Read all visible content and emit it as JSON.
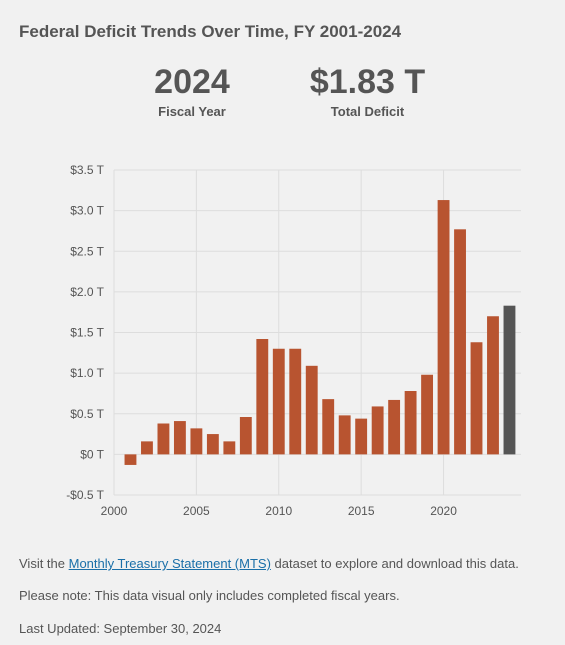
{
  "header": {
    "title": "Federal Deficit Trends Over Time, FY 2001-2024"
  },
  "stats": {
    "year_value": "2024",
    "year_label": "Fiscal Year",
    "deficit_value": "$1.83 T",
    "deficit_label": "Total Deficit"
  },
  "chart_data": {
    "type": "bar",
    "title": "",
    "xlabel": "",
    "ylabel": "",
    "x": [
      2001,
      2002,
      2003,
      2004,
      2005,
      2006,
      2007,
      2008,
      2009,
      2010,
      2011,
      2012,
      2013,
      2014,
      2015,
      2016,
      2017,
      2018,
      2019,
      2020,
      2021,
      2022,
      2023,
      2024
    ],
    "values": [
      -0.13,
      0.16,
      0.38,
      0.41,
      0.32,
      0.25,
      0.16,
      0.46,
      1.42,
      1.3,
      1.3,
      1.09,
      0.68,
      0.48,
      0.44,
      0.59,
      0.67,
      0.78,
      0.98,
      3.13,
      2.77,
      1.38,
      1.7,
      1.83
    ],
    "highlight_x": 2024,
    "xlim": [
      2000,
      2024.7
    ],
    "ylim": [
      -0.5,
      3.5
    ],
    "x_ticks": [
      2000,
      2005,
      2010,
      2015,
      2020
    ],
    "x_tick_labels": [
      "2000",
      "2005",
      "2010",
      "2015",
      "2020"
    ],
    "y_ticks": [
      -0.5,
      0,
      0.5,
      1.0,
      1.5,
      2.0,
      2.5,
      3.0,
      3.5
    ],
    "y_tick_labels": [
      "-$0.5 T",
      "$0 T",
      "$0.5 T",
      "$1.0 T",
      "$1.5 T",
      "$2.0 T",
      "$2.5 T",
      "$3.0 T",
      "$3.5 T"
    ],
    "grid": true,
    "colors": {
      "bar": "#b85430",
      "highlight": "#555555",
      "grid": "#dddddd"
    }
  },
  "footer": {
    "visit_prefix": "Visit the ",
    "link_text": "Monthly Treasury Statement (MTS)",
    "visit_suffix": " dataset to explore and download this data.",
    "note": "Please note: This data visual only includes completed fiscal years.",
    "updated": "Last Updated: September 30, 2024"
  }
}
